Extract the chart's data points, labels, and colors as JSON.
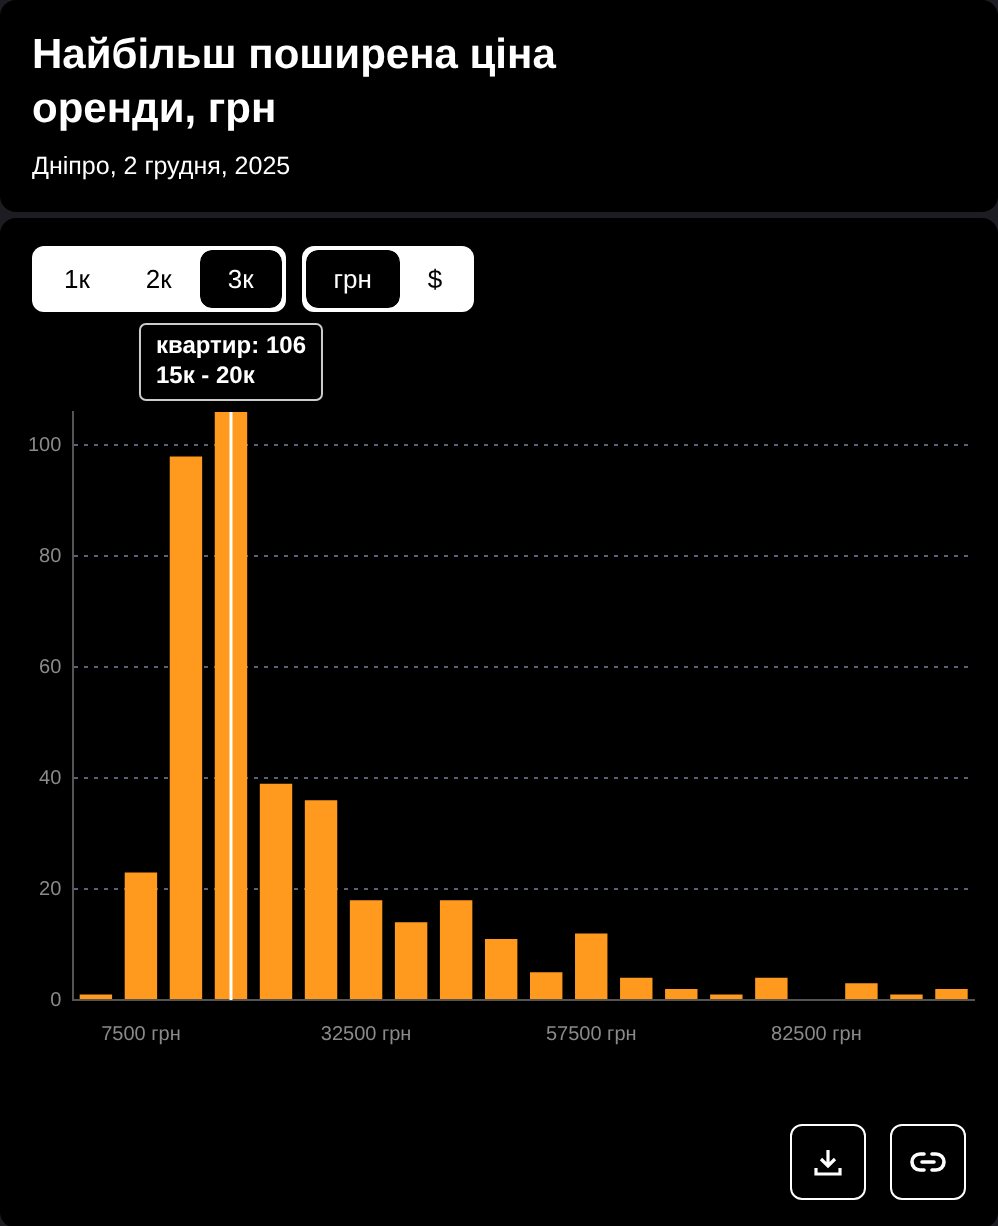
{
  "chart_data": {
    "type": "histogram",
    "title": "Найбільш поширена ціна оренди, грн",
    "subtitle": "Дніпро, 2 грудня, 2025",
    "bins": [
      0,
      5000,
      10000,
      15000,
      20000,
      25000,
      30000,
      35000,
      40000,
      45000,
      50000,
      55000,
      60000,
      65000,
      70000,
      75000,
      80000,
      85000,
      90000,
      95000,
      100000
    ],
    "values": [
      1,
      23,
      98,
      106,
      39,
      36,
      18,
      14,
      18,
      11,
      5,
      12,
      4,
      2,
      1,
      4,
      0,
      3,
      1,
      2
    ],
    "color": "#ff9a1f",
    "xlim": [
      0,
      100000
    ],
    "xticks": [
      {
        "value": 7500,
        "label": "7500 грн"
      },
      {
        "value": 32500,
        "label": "32500 грн"
      },
      {
        "value": 57500,
        "label": "57500 грн"
      },
      {
        "value": 82500,
        "label": "82500 грн"
      }
    ],
    "ref_lines": [
      {
        "axis": "x",
        "value": 17500,
        "color": "#ffffff"
      }
    ],
    "ylim": [
      0,
      106
    ],
    "yticks": [
      0,
      20,
      40,
      60,
      80,
      100
    ],
    "grid": "y",
    "legend": false,
    "annotations": [
      {
        "text": "квартир: 106\n15к - 20к",
        "x": 17500,
        "y": 106
      },
      "1к",
      "2к",
      "3к",
      "грн",
      "$"
    ]
  }
}
